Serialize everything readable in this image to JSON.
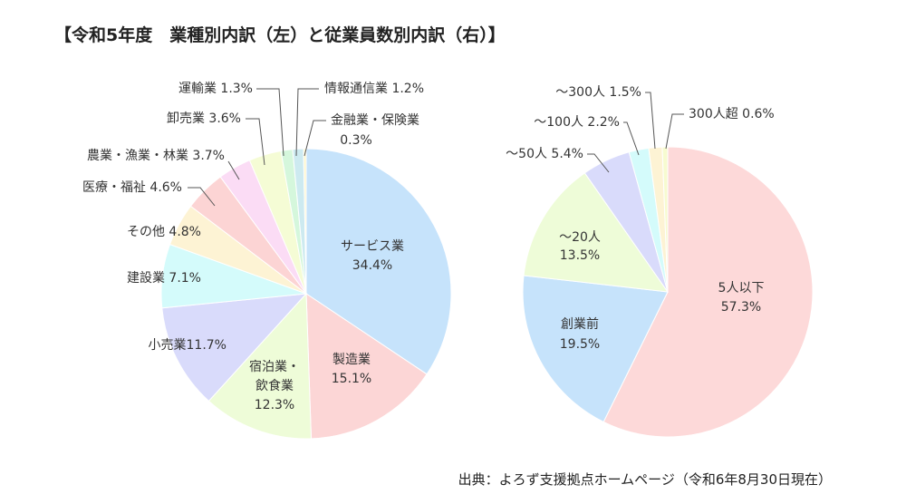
{
  "title": "【令和5年度　業種別内訳（左）と従業員数別内訳（右）】",
  "source": "出典：よろず支援拠点ホームページ（令和6年8月30日現在）",
  "chart_data": [
    {
      "type": "pie",
      "title": "業種別内訳",
      "start": "top, clockwise",
      "slices": [
        {
          "label": "サービス業",
          "value": 34.4,
          "value_label": "34.4%",
          "color": "#c6e3fb"
        },
        {
          "label": "製造業",
          "value": 15.1,
          "value_label": "15.1%",
          "color": "#fcd6d6"
        },
        {
          "label": "宿泊業・飲食業",
          "label_lines": [
            "宿泊業・",
            "飲食業"
          ],
          "value": 12.3,
          "value_label": "12.3%",
          "color": "#eefcd8"
        },
        {
          "label": "小売業",
          "value": 11.7,
          "value_label": "小売業11.7%",
          "color": "#d9dbfb"
        },
        {
          "label": "建設業",
          "value": 7.1,
          "value_label": "建設業 7.1%",
          "color": "#d4fbfb"
        },
        {
          "label": "その他",
          "value": 4.8,
          "value_label": "その他 4.8%",
          "color": "#fdf3d4"
        },
        {
          "label": "医療・福祉",
          "value": 4.6,
          "value_label": "医療・福祉 4.6%",
          "color": "#fcd4d4"
        },
        {
          "label": "農業・漁業・林業",
          "value": 3.7,
          "value_label": "農業・漁業・林業 3.7%",
          "color": "#fbdcf5"
        },
        {
          "label": "卸売業",
          "value": 3.6,
          "value_label": "卸売業 3.6%",
          "color": "#f5fcd5"
        },
        {
          "label": "運輸業",
          "value": 1.3,
          "value_label": "運輸業 1.3%",
          "color": "#d5f7dc"
        },
        {
          "label": "情報通信業",
          "value": 1.2,
          "value_label": "情報通信業 1.2%",
          "color": "#cdeaf0"
        },
        {
          "label": "金融業・保険業",
          "value": 0.3,
          "value_label": "0.3%",
          "color": "#fdf6cc"
        }
      ]
    },
    {
      "type": "pie",
      "title": "従業員数別内訳",
      "start": "top, clockwise",
      "slices": [
        {
          "label": "5人以下",
          "value": 57.3,
          "value_label": "57.3%",
          "color": "#fdd9d9"
        },
        {
          "label": "創業前",
          "value": 19.5,
          "value_label": "19.5%",
          "color": "#c6e3fb"
        },
        {
          "label": "～20人",
          "value": 13.5,
          "value_label": "13.5%",
          "color": "#eefcd8"
        },
        {
          "label": "～50人",
          "value": 5.4,
          "value_label": "～50人 5.4%",
          "color": "#d9dbfb"
        },
        {
          "label": "～100人",
          "value": 2.2,
          "value_label": "～100人 2.2%",
          "color": "#d4fbfb"
        },
        {
          "label": "～300人",
          "value": 1.5,
          "value_label": "～300人 1.5%",
          "color": "#fdf3d4"
        },
        {
          "label": "300人超",
          "value": 0.6,
          "value_label": "300人超 0.6%",
          "color": "#f7fbd0"
        }
      ]
    }
  ]
}
